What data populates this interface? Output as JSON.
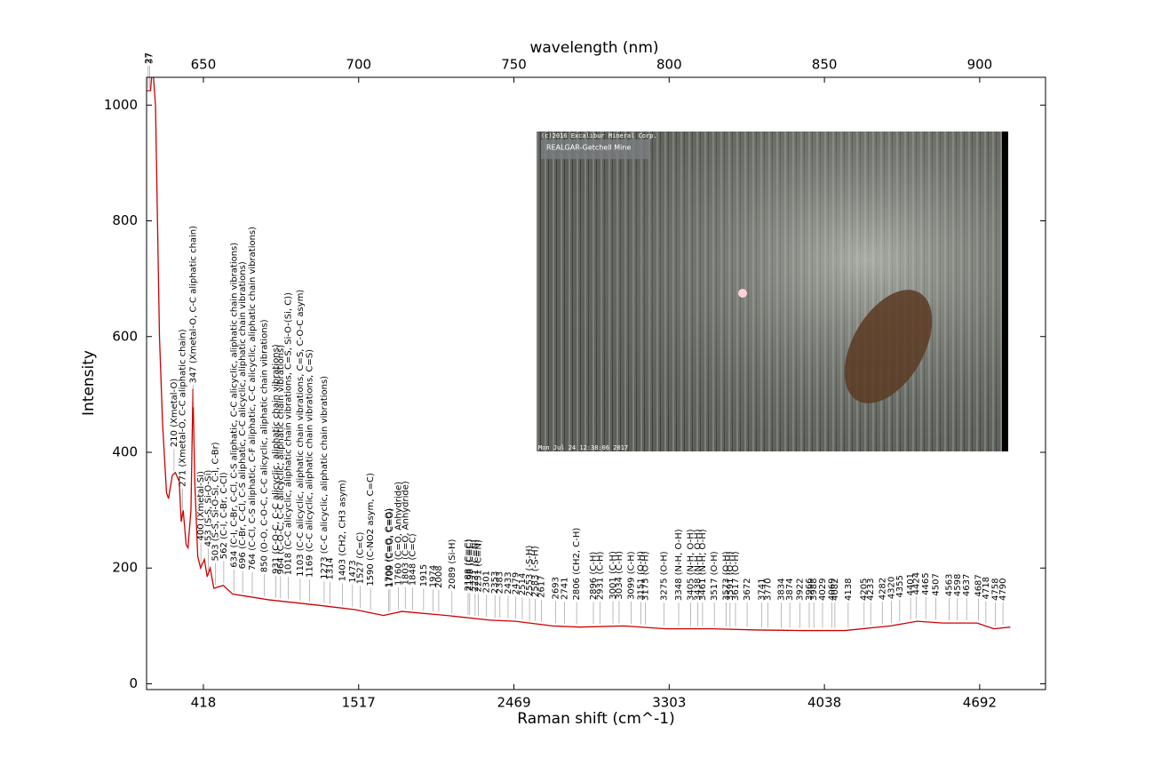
{
  "chart_data": {
    "type": "line",
    "xlabel": "Raman shift (cm^-1)",
    "ylabel": "Intensity",
    "x2label": "wavelength (nm)",
    "ylim": [
      -10,
      1048
    ],
    "yticks": [
      0,
      200,
      400,
      600,
      800,
      1000
    ],
    "xticks": [
      418,
      1517,
      2469,
      3303,
      4038,
      4692
    ],
    "x2lim": [
      631.7,
      921.2
    ],
    "x2ticks": [
      650,
      700,
      750,
      800,
      850,
      900
    ],
    "grid": false,
    "series": [
      {
        "color": "#cc0000",
        "x": [
          -28,
          44,
          58,
          79,
          107,
          129,
          157,
          171,
          198,
          219,
          247,
          261,
          275,
          296,
          309,
          330,
          344,
          357,
          378,
          398,
          425,
          445,
          466,
          492,
          559,
          625,
          756,
          884,
          1073,
          1257,
          1495,
          1669,
          1782,
          2058,
          2323,
          2477,
          2677,
          2823,
          3060,
          3288,
          3508,
          3720,
          3926,
          4124,
          4316,
          4428,
          4538,
          4681,
          4752,
          4821
        ],
        "values": [
          1025,
          1025,
          1070,
          1000,
          600,
          450,
          330,
          320,
          360,
          365,
          350,
          280,
          300,
          240,
          235,
          300,
          510,
          350,
          220,
          200,
          215,
          185,
          200,
          165,
          170,
          155,
          150,
          145,
          140,
          135,
          128,
          118,
          125,
          118,
          110,
          108,
          100,
          98,
          100,
          95,
          95,
          93,
          92,
          92,
          100,
          108,
          105,
          105,
          95,
          98
        ]
      },
      {
        "color": "#0000cc",
        "x": [
          -28,
          8,
          8
        ],
        "values": [
          1000,
          1000,
          0
        ]
      }
    ],
    "peaks": [
      {
        "x": 27,
        "label": "27"
      },
      {
        "x": 37,
        "label": "37"
      },
      {
        "x": 210,
        "label": "210 (Xmetal-O)"
      },
      {
        "x": 271,
        "label": "271 (Xmetal-O, C-C aliphatic chain)"
      },
      {
        "x": 347,
        "label": "347 (Xmetal-O, C-C aliphatic chain)"
      },
      {
        "x": 400,
        "label": "400 (Xmetal-Si)"
      },
      {
        "x": 453,
        "label": "453 (S-S, Si-O-Si)"
      },
      {
        "x": 503,
        "label": "503 (S-S, Si-O-Si, C-I, C-Br)"
      },
      {
        "x": 562,
        "label": "562 (C-I, C-Br, C-Cl)"
      },
      {
        "x": 634,
        "label": "634 (C-I, C-Br, C-Cl, C-S aliphatic, C-C alicyclic, aliphatic chain vibrations)"
      },
      {
        "x": 696,
        "label": "696 (C-Br, C-Cl, C-S aliphatic, C-C alicyclic, aliphatic chain vibrations)"
      },
      {
        "x": 764,
        "label": "764 (C-Cl, C-S aliphatic, C-F aliphatic, C-C alicyclic, aliphatic chain vibrations)"
      },
      {
        "x": 850,
        "label": "850 (O-O, C-O-C, C-C alicyclic, aliphatic chain vibrations)"
      },
      {
        "x": 931,
        "label": "931 (C-O-C, C-C alicyclic, aliphatic chain vibrations)"
      },
      {
        "x": 964,
        "label": "964 (C-O-C, C-C alicyclic, aliphatic chain vibrations)"
      },
      {
        "x": 1018,
        "label": "1018 (C-C alicyclic, aliphatic chain vibrations, C=S, Si-O-(Si, C))"
      },
      {
        "x": 1103,
        "label": "1103 (C-C alicyclic, aliphatic chain vibrations, C=S, C-O-C asym)"
      },
      {
        "x": 1169,
        "label": "1169 (C-C alicyclic, aliphatic chain vibrations, C=S)"
      },
      {
        "x": 1273,
        "label": "1273 (C-C alicyclic, aliphatic chain vibrations)"
      },
      {
        "x": 1314,
        "label": "1314"
      },
      {
        "x": 1403,
        "label": "1403 (CH2, CH3 asym)"
      },
      {
        "x": 1473,
        "label": "1473"
      },
      {
        "x": 1527,
        "label": "1527 (C=C)"
      },
      {
        "x": 1590,
        "label": "1590 (C-NO2 asym, C=C)"
      },
      {
        "x": 1700,
        "label": "1700 (C=O, C=O)"
      },
      {
        "x": 1709,
        "label": "1709 (C=O, C=O)"
      },
      {
        "x": 1760,
        "label": "1760 (C=O, Anhydride)"
      },
      {
        "x": 1803,
        "label": "1803 (C=O, Anhydride)"
      },
      {
        "x": 1848,
        "label": "1848 (C=C)"
      },
      {
        "x": 1915,
        "label": "1915"
      },
      {
        "x": 1974,
        "label": "1974"
      },
      {
        "x": 2008,
        "label": "2008"
      },
      {
        "x": 2089,
        "label": "2089 (Si-H)"
      },
      {
        "x": 2188,
        "label": "2188 (C≡C)"
      },
      {
        "x": 2198,
        "label": "2198 (C≡C)"
      },
      {
        "x": 2231,
        "label": "2231 (C≡N)"
      },
      {
        "x": 2251,
        "label": "2251 (C≡N)"
      },
      {
        "x": 2301,
        "label": "2301"
      },
      {
        "x": 2353,
        "label": "2353"
      },
      {
        "x": 2383,
        "label": "2383"
      },
      {
        "x": 2433,
        "label": "2433"
      },
      {
        "x": 2479,
        "label": "2479"
      },
      {
        "x": 2514,
        "label": "2514"
      },
      {
        "x": 2553,
        "label": "2553 (-S-H)"
      },
      {
        "x": 2583,
        "label": "2583 (-S-H)"
      },
      {
        "x": 2617,
        "label": "2617"
      },
      {
        "x": 2693,
        "label": "2693"
      },
      {
        "x": 2741,
        "label": "2741"
      },
      {
        "x": 2806,
        "label": "2806 (CH2, C-H)"
      },
      {
        "x": 2896,
        "label": "2896 (C-H)"
      },
      {
        "x": 2931,
        "label": "2931 (C-H)"
      },
      {
        "x": 3001,
        "label": "3001 (C-H)"
      },
      {
        "x": 3034,
        "label": "3034 (C-H)"
      },
      {
        "x": 3099,
        "label": "3099 (C-H)"
      },
      {
        "x": 3151,
        "label": "3151 (O-H)"
      },
      {
        "x": 3175,
        "label": "3175 (O-H)"
      },
      {
        "x": 3275,
        "label": "3275 (O-H)"
      },
      {
        "x": 3348,
        "label": "3348 (N-H, O-H)"
      },
      {
        "x": 3405,
        "label": "3405 (N-H, O-H)"
      },
      {
        "x": 3438,
        "label": "3438 (N-H, O-H)"
      },
      {
        "x": 3461,
        "label": "3461 (N-H, O-H)"
      },
      {
        "x": 3517,
        "label": "3517 (O-H)"
      },
      {
        "x": 3573,
        "label": "3573 (O-H)"
      },
      {
        "x": 3591,
        "label": "3591 (O-H)"
      },
      {
        "x": 3617,
        "label": "3617 (O-H)"
      },
      {
        "x": 3672,
        "label": "3672"
      },
      {
        "x": 3741,
        "label": "3741"
      },
      {
        "x": 3770,
        "label": "3770"
      },
      {
        "x": 3834,
        "label": "3834"
      },
      {
        "x": 3874,
        "label": "3874"
      },
      {
        "x": 3922,
        "label": "3922"
      },
      {
        "x": 3966,
        "label": "3966"
      },
      {
        "x": 3988,
        "label": "3988"
      },
      {
        "x": 4029,
        "label": "4029"
      },
      {
        "x": 4069,
        "label": "4069"
      },
      {
        "x": 4082,
        "label": "4082"
      },
      {
        "x": 4138,
        "label": "4138"
      },
      {
        "x": 4205,
        "label": "4205"
      },
      {
        "x": 4233,
        "label": "4233"
      },
      {
        "x": 4282,
        "label": "4282"
      },
      {
        "x": 4320,
        "label": "4320"
      },
      {
        "x": 4355,
        "label": "4355"
      },
      {
        "x": 4401,
        "label": "4401"
      },
      {
        "x": 4424,
        "label": "4424"
      },
      {
        "x": 4465,
        "label": "4465"
      },
      {
        "x": 4507,
        "label": "4507"
      },
      {
        "x": 4563,
        "label": "4563"
      },
      {
        "x": 4598,
        "label": "4598"
      },
      {
        "x": 4637,
        "label": "4637"
      },
      {
        "x": 4687,
        "label": "4687"
      },
      {
        "x": 4718,
        "label": "4718"
      },
      {
        "x": 4758,
        "label": "4758"
      },
      {
        "x": 4790,
        "label": "4790"
      }
    ],
    "inset": {
      "copyright": "(c)2016 Excalibur Mineral Corp.",
      "caption": "REALGAR-Getchell Mine",
      "timestamp": "Mon Jul 24 12:38:06 2017"
    }
  }
}
